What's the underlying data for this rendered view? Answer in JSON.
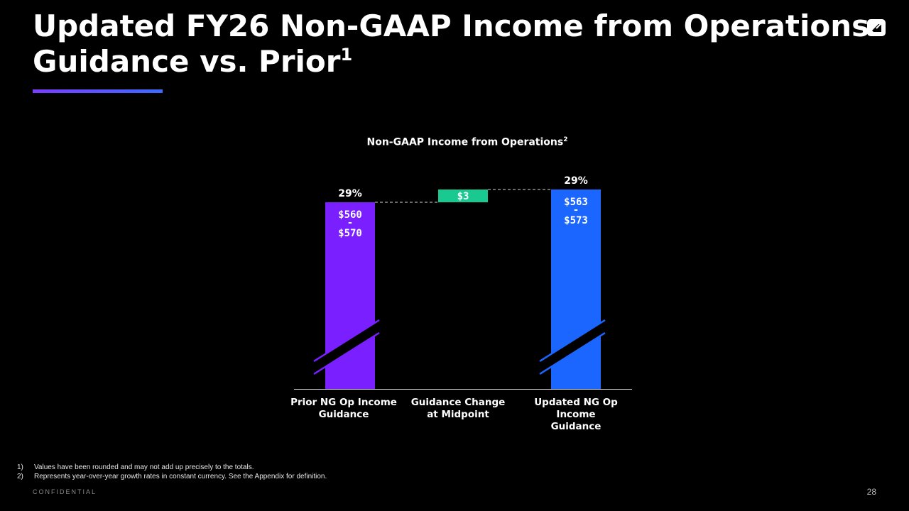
{
  "slide": {
    "title_line1": "Updated FY26 Non-GAAP Income from Operations",
    "title_line2": "Guidance vs. Prior",
    "title_footnote": "1",
    "logo_icon": "company-logo-icon",
    "accent_colors": [
      "#7b3cff",
      "#3d6bff"
    ],
    "footnotes": [
      {
        "num": "1)",
        "text": "Values have been rounded and may not add up precisely to the totals."
      },
      {
        "num": "2)",
        "text": "Represents year-over-year growth rates in constant currency. See the Appendix for definition."
      }
    ],
    "confidential": "CONFIDENTIAL",
    "page_number": "28"
  },
  "chart_data": {
    "type": "bar",
    "subtype": "waterfall",
    "title": "Non-GAAP Income from Operations",
    "title_footnote": "2",
    "categories": [
      "Prior NG Op Income Guidance",
      "Guidance Change at Midpoint",
      "Updated NG Op Income Guidance"
    ],
    "category_lines": [
      [
        "Prior NG Op Income",
        "Guidance"
      ],
      [
        "Guidance Change",
        "at Midpoint"
      ],
      [
        "Updated NG Op Income",
        "Guidance"
      ]
    ],
    "axis_break": true,
    "connectors": "dashed",
    "bars": [
      {
        "kind": "total",
        "low": 560,
        "high": 570,
        "midpoint": 565,
        "growth": "29%",
        "label_lines": [
          "$560",
          "-",
          "$570"
        ],
        "color": "#7a1fff"
      },
      {
        "kind": "change",
        "value": 3,
        "base": 565,
        "label_lines": [
          "$3"
        ],
        "color": "#19c98f"
      },
      {
        "kind": "total",
        "low": 563,
        "high": 573,
        "midpoint": 568,
        "growth": "29%",
        "label_lines": [
          "$563",
          "-",
          "$573"
        ],
        "color": "#1a66ff"
      }
    ]
  }
}
